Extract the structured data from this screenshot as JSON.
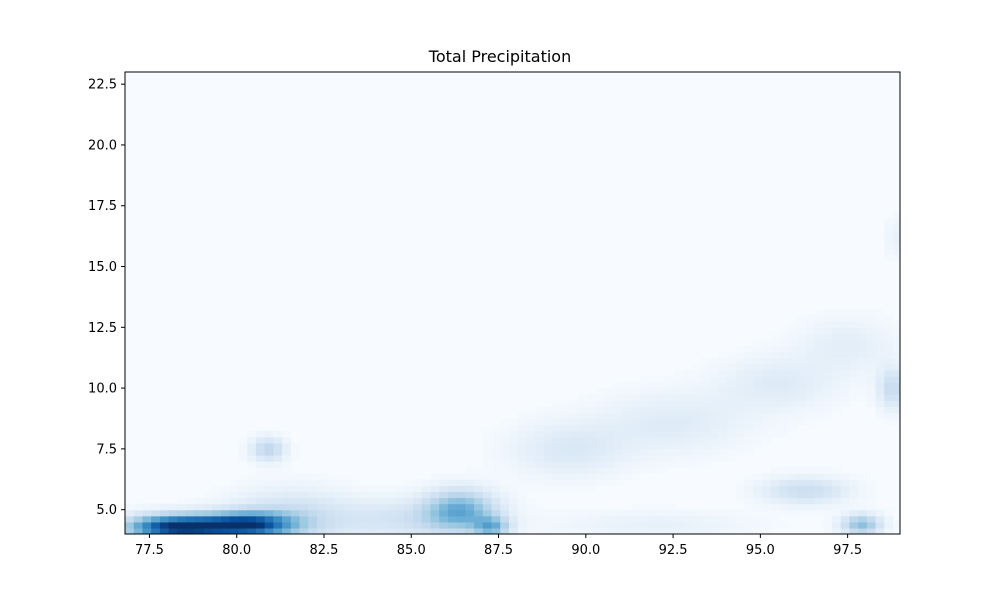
{
  "chart_data": {
    "type": "heatmap",
    "title": "Total Precipitation",
    "xlabel": "",
    "ylabel": "",
    "xlim": [
      76.8,
      99.0
    ],
    "ylim": [
      4.0,
      23.0
    ],
    "x_ticks": [
      77.5,
      80.0,
      82.5,
      85.0,
      87.5,
      90.0,
      92.5,
      95.0,
      97.5
    ],
    "x_tick_labels": [
      "77.5",
      "80.0",
      "82.5",
      "85.0",
      "87.5",
      "90.0",
      "92.5",
      "95.0",
      "97.5"
    ],
    "y_ticks": [
      5.0,
      7.5,
      10.0,
      12.5,
      15.0,
      17.5,
      20.0,
      22.5
    ],
    "y_tick_labels": [
      "5.0",
      "7.5",
      "10.0",
      "12.5",
      "15.0",
      "17.5",
      "20.0",
      "22.5"
    ],
    "colormap": "Blues",
    "grid": false,
    "colorbar": false,
    "cell_size_deg": 0.25,
    "intensity_scale": [
      0,
      1
    ],
    "precipitation_features": [
      {
        "lon": 78.3,
        "lat": 4.3,
        "sigma_lon": 1.0,
        "sigma_lat": 0.35,
        "intensity": 1.0
      },
      {
        "lon": 80.3,
        "lat": 4.4,
        "sigma_lon": 0.9,
        "sigma_lat": 0.35,
        "intensity": 0.82
      },
      {
        "lon": 81.5,
        "lat": 4.7,
        "sigma_lon": 1.2,
        "sigma_lat": 0.8,
        "intensity": 0.22
      },
      {
        "lon": 80.9,
        "lat": 7.5,
        "sigma_lon": 0.35,
        "sigma_lat": 0.35,
        "intensity": 0.28
      },
      {
        "lon": 86.4,
        "lat": 5.0,
        "sigma_lon": 0.7,
        "sigma_lat": 0.6,
        "intensity": 0.45
      },
      {
        "lon": 87.3,
        "lat": 4.3,
        "sigma_lon": 0.35,
        "sigma_lat": 0.3,
        "intensity": 0.4
      },
      {
        "lon": 85.0,
        "lat": 4.6,
        "sigma_lon": 1.6,
        "sigma_lat": 0.6,
        "intensity": 0.18
      },
      {
        "lon": 89.5,
        "lat": 7.5,
        "sigma_lon": 1.2,
        "sigma_lat": 0.8,
        "intensity": 0.14
      },
      {
        "lon": 92.5,
        "lat": 8.6,
        "sigma_lon": 1.5,
        "sigma_lat": 0.9,
        "intensity": 0.12
      },
      {
        "lon": 95.5,
        "lat": 10.2,
        "sigma_lon": 1.2,
        "sigma_lat": 0.8,
        "intensity": 0.12
      },
      {
        "lon": 97.5,
        "lat": 11.8,
        "sigma_lon": 1.0,
        "sigma_lat": 0.8,
        "intensity": 0.1
      },
      {
        "lon": 96.3,
        "lat": 5.8,
        "sigma_lon": 0.9,
        "sigma_lat": 0.4,
        "intensity": 0.22
      },
      {
        "lon": 97.9,
        "lat": 4.4,
        "sigma_lon": 0.4,
        "sigma_lat": 0.3,
        "intensity": 0.42
      },
      {
        "lon": 98.8,
        "lat": 10.0,
        "sigma_lon": 0.3,
        "sigma_lat": 0.6,
        "intensity": 0.24
      },
      {
        "lon": 98.9,
        "lat": 16.2,
        "sigma_lon": 0.25,
        "sigma_lat": 0.6,
        "intensity": 0.07
      },
      {
        "lon": 92.0,
        "lat": 4.4,
        "sigma_lon": 2.0,
        "sigma_lat": 0.4,
        "intensity": 0.08
      }
    ]
  }
}
